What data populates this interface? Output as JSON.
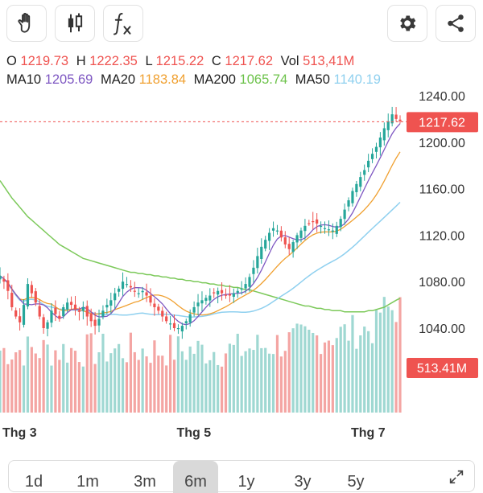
{
  "toolbar": {
    "left_buttons": [
      {
        "icon": "hand-icon",
        "name": "drawing-mode-button"
      },
      {
        "icon": "candlestick-icon",
        "name": "chart-type-button"
      },
      {
        "icon": "fx-indicator-icon",
        "name": "indicator-button"
      }
    ],
    "right_buttons": [
      {
        "icon": "gear-icon",
        "name": "settings-button"
      },
      {
        "icon": "share-icon",
        "name": "share-button"
      }
    ]
  },
  "ohlc": {
    "o_label": "O",
    "o": "1219.73",
    "h_label": "H",
    "h": "1222.35",
    "l_label": "L",
    "l": "1215.22",
    "c_label": "C",
    "c": "1217.62",
    "vol_label": "Vol",
    "vol": "513,41M"
  },
  "ma": {
    "ma10_label": "MA10",
    "ma10": "1205.69",
    "ma20_label": "MA20",
    "ma20": "1183.84",
    "ma200_label": "MA200",
    "ma200": "1065.74",
    "ma50_label": "MA50",
    "ma50": "1140.19"
  },
  "colors": {
    "up": "#26a69a",
    "down": "#ef5350",
    "ma10": "#7e57c2",
    "ma20": "#f0a030",
    "ma200": "#7cc95a",
    "ma50": "#8fd0ef",
    "price_tag": "#ef5350",
    "vol_up": "#9fd8d2",
    "vol_down": "#f4a5a3"
  },
  "chart_data": {
    "type": "candlestick",
    "y_ticks": [
      "1240.00",
      "1200.00",
      "1160.00",
      "1120.00",
      "1080.00",
      "1040.00"
    ],
    "y_tick_values": [
      1240,
      1200,
      1160,
      1120,
      1080,
      1040
    ],
    "y_range": [
      1012,
      1253
    ],
    "x_tick_labels": [
      "Thg 3",
      "Thg 5",
      "Thg 7"
    ],
    "x_tick_index": [
      9,
      53,
      97
    ],
    "last_price_label": "1217.62",
    "last_price": 1217.62,
    "volume_label": "513.41M",
    "close": [
      1085,
      1080,
      1072,
      1058,
      1050,
      1045,
      1060,
      1078,
      1070,
      1062,
      1050,
      1040,
      1045,
      1055,
      1052,
      1048,
      1058,
      1062,
      1060,
      1056,
      1054,
      1058,
      1050,
      1046,
      1042,
      1048,
      1055,
      1060,
      1064,
      1070,
      1074,
      1080,
      1078,
      1075,
      1072,
      1070,
      1072,
      1068,
      1062,
      1058,
      1055,
      1050,
      1046,
      1044,
      1040,
      1040,
      1042,
      1046,
      1052,
      1058,
      1062,
      1064,
      1066,
      1068,
      1070,
      1072,
      1070,
      1068,
      1068,
      1070,
      1072,
      1074,
      1078,
      1084,
      1092,
      1102,
      1110,
      1116,
      1122,
      1126,
      1124,
      1118,
      1112,
      1108,
      1114,
      1120,
      1124,
      1128,
      1130,
      1132,
      1130,
      1128,
      1126,
      1125,
      1124,
      1128,
      1134,
      1142,
      1150,
      1158,
      1164,
      1170,
      1176,
      1184,
      1190,
      1196,
      1204,
      1212,
      1218,
      1224,
      1220,
      1218
    ],
    "ma200": [
      1167,
      1162,
      1157,
      1152,
      1148,
      1144,
      1140,
      1136,
      1133,
      1130,
      1127,
      1124,
      1121,
      1118,
      1115,
      1112,
      1110,
      1108,
      1106,
      1104,
      1102,
      1100,
      1099,
      1098,
      1097,
      1096,
      1095,
      1094,
      1093,
      1092,
      1091,
      1090,
      1089,
      1088,
      1088,
      1087,
      1087,
      1086,
      1086,
      1085,
      1085,
      1084,
      1084,
      1083,
      1083,
      1082,
      1082,
      1081,
      1081,
      1080,
      1080,
      1079,
      1079,
      1078,
      1078,
      1077,
      1077,
      1076,
      1076,
      1075,
      1075,
      1074,
      1073,
      1073,
      1072,
      1071,
      1070,
      1069,
      1068,
      1067,
      1066,
      1065,
      1064,
      1063,
      1062,
      1061,
      1060,
      1059,
      1059,
      1058,
      1057,
      1057,
      1056,
      1056,
      1055,
      1055,
      1055,
      1054,
      1054,
      1054,
      1054,
      1054,
      1054,
      1055,
      1055,
      1056,
      1057,
      1058,
      1060,
      1062,
      1064,
      1065.74
    ]
  },
  "periods": [
    {
      "label": "1d"
    },
    {
      "label": "1m"
    },
    {
      "label": "3m"
    },
    {
      "label": "6m",
      "active": true
    },
    {
      "label": "1y"
    },
    {
      "label": "3y"
    },
    {
      "label": "5y"
    }
  ]
}
